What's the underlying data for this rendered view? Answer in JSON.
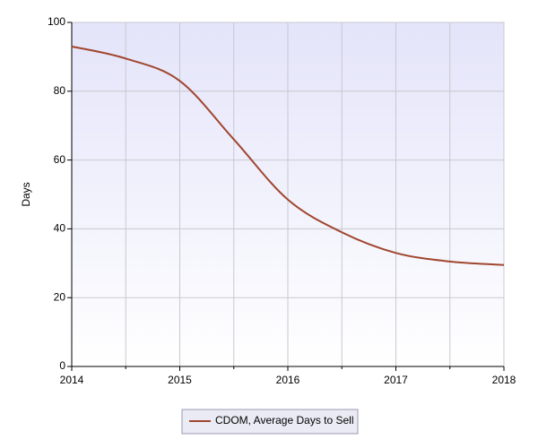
{
  "chart_data": {
    "type": "line",
    "y_label": "Days",
    "x": [
      2014,
      2014.5,
      2015,
      2015.5,
      2016,
      2016.5,
      2017,
      2017.5,
      2018
    ],
    "series": [
      {
        "name": "CDOM, Average Days to Sell",
        "color": "#a0462e",
        "values": [
          93,
          89.5,
          83,
          66,
          48.5,
          39,
          33,
          30.5,
          29.5
        ]
      }
    ],
    "xlim": [
      2014,
      2018
    ],
    "xticks": [
      2014,
      2015,
      2016,
      2017,
      2018
    ],
    "ylim": [
      0,
      100
    ],
    "yticks": [
      0,
      20,
      40,
      60,
      80,
      100
    ],
    "grid": true
  }
}
